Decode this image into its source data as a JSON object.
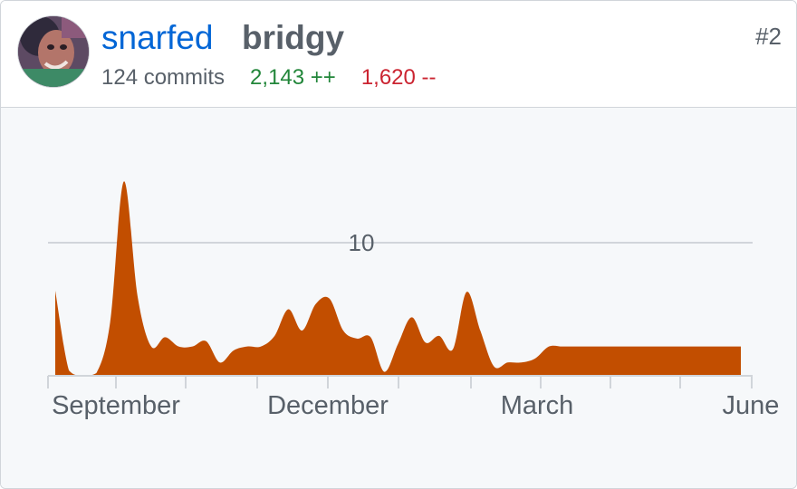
{
  "user": {
    "username": "snarfed",
    "repo": "bridgy",
    "rank": "#2"
  },
  "stats": {
    "commits": "124 commits",
    "additions": "2,143 ++",
    "deletions": "1,620 --"
  },
  "colors": {
    "link": "#0366d6",
    "additions": "#22863a",
    "deletions": "#cb2431",
    "area": "#c24e00",
    "background": "#f6f8fa"
  },
  "chart_data": {
    "type": "area",
    "xlabels": [
      "September",
      "December",
      "March",
      "June"
    ],
    "ytick_label": "10",
    "ytick_value": 10,
    "ylim": [
      0,
      14.7
    ],
    "grid": true,
    "x": [
      0,
      1,
      2,
      3,
      4,
      5,
      6,
      7,
      8,
      9,
      10,
      11,
      12,
      13,
      14,
      15,
      16,
      17,
      18,
      19,
      20,
      21,
      22,
      23,
      24,
      25,
      26,
      27,
      28,
      29,
      30,
      31,
      32,
      33,
      34,
      35,
      36,
      37,
      38,
      39,
      40,
      41,
      42,
      43,
      44,
      45,
      46,
      47,
      48,
      49,
      50
    ],
    "values": [
      6.4,
      0.4,
      0,
      0.2,
      4,
      14.6,
      6,
      2.2,
      2.9,
      2.2,
      2.2,
      2.6,
      1,
      1.9,
      2.2,
      2.2,
      3,
      5,
      3.4,
      5.4,
      5.8,
      3.4,
      2.8,
      2.9,
      0.3,
      2.4,
      4.4,
      2.5,
      3,
      2,
      6.3,
      3.4,
      0.7,
      1,
      1,
      1.3,
      2.2,
      2.2,
      2.2,
      2.2,
      2.2,
      2.2,
      2.2,
      2.2,
      2.2,
      2.2,
      2.2,
      2.2,
      2.2,
      2.2,
      2.2
    ]
  }
}
